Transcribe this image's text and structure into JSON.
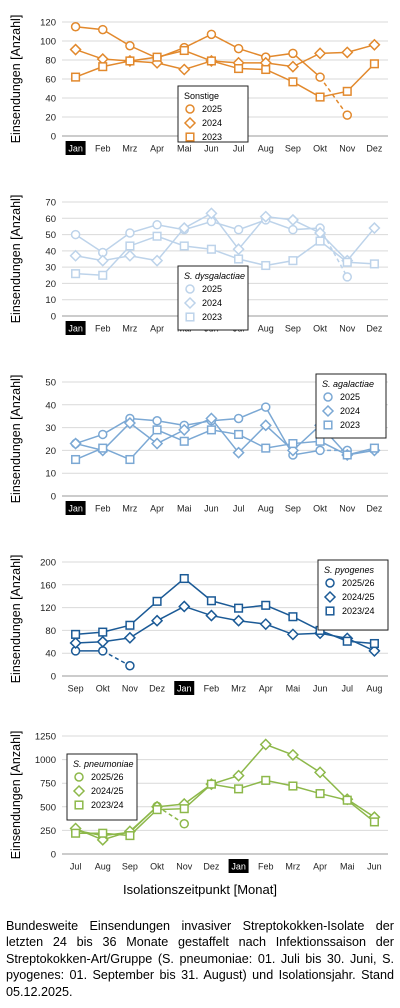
{
  "chart_data": [
    {
      "type": "line",
      "ylabel": "Einsendungen [Anzahl]",
      "categories": [
        "Jan",
        "Feb",
        "Mrz",
        "Apr",
        "Mai",
        "Jun",
        "Jul",
        "Aug",
        "Sep",
        "Okt",
        "Nov",
        "Dez"
      ],
      "highlight": "Jan",
      "ylim": [
        0,
        120
      ],
      "yticks": [
        0,
        20,
        40,
        60,
        80,
        100,
        120
      ],
      "grid": true,
      "legend": {
        "title": "Sonstige",
        "position": "center-right"
      },
      "series": [
        {
          "name": "2025",
          "marker": "circle",
          "color": "#E2892D",
          "values": [
            115,
            112,
            95,
            82,
            93,
            107,
            92,
            83,
            87,
            62,
            null,
            null
          ],
          "dashed": {
            "from": 9,
            "to": 10,
            "value": 22
          }
        },
        {
          "name": "2024",
          "marker": "diamond",
          "color": "#E2892D",
          "values": [
            91,
            81,
            79,
            77,
            70,
            79,
            77,
            77,
            73,
            87,
            88,
            96
          ]
        },
        {
          "name": "2023",
          "marker": "square",
          "color": "#E2892D",
          "values": [
            62,
            73,
            79,
            83,
            90,
            79,
            71,
            70,
            57,
            41,
            47,
            76
          ]
        }
      ]
    },
    {
      "type": "line",
      "ylabel": "Einsendungen [Anzahl]",
      "categories": [
        "Jan",
        "Feb",
        "Mrz",
        "Apr",
        "Mai",
        "Jun",
        "Jul",
        "Aug",
        "Sep",
        "Okt",
        "Nov",
        "Dez"
      ],
      "highlight": "Jan",
      "ylim": [
        0,
        70
      ],
      "yticks": [
        0,
        10,
        20,
        30,
        40,
        50,
        60,
        70
      ],
      "grid": true,
      "legend": {
        "title": "S. dysgalactiae",
        "position": "center"
      },
      "series": [
        {
          "name": "2025",
          "marker": "circle",
          "color": "#BDD3EA",
          "values": [
            50,
            39,
            51,
            56,
            53,
            58,
            53,
            59,
            53,
            54,
            null,
            null
          ],
          "dashed": {
            "from": 9,
            "to": 10,
            "value": 24
          }
        },
        {
          "name": "2024",
          "marker": "diamond",
          "color": "#BDD3EA",
          "values": [
            37,
            34,
            37,
            34,
            54,
            63,
            41,
            61,
            59,
            51,
            34,
            54
          ]
        },
        {
          "name": "2023",
          "marker": "square",
          "color": "#BDD3EA",
          "values": [
            26,
            25,
            43,
            49,
            43,
            41,
            35,
            31,
            34,
            46,
            33,
            32
          ]
        }
      ]
    },
    {
      "type": "line",
      "ylabel": "Einsendungen [Anzahl]",
      "categories": [
        "Jan",
        "Feb",
        "Mrz",
        "Apr",
        "Mai",
        "Jun",
        "Jul",
        "Aug",
        "Sep",
        "Okt",
        "Nov",
        "Dez"
      ],
      "highlight": "Jan",
      "ylim": [
        0,
        50
      ],
      "yticks": [
        0,
        10,
        20,
        30,
        40,
        50
      ],
      "grid": true,
      "legend": {
        "title": "S. agalactiae",
        "position": "top-right"
      },
      "series": [
        {
          "name": "2025",
          "marker": "circle",
          "color": "#7BA8D4",
          "values": [
            23,
            27,
            34,
            33,
            31,
            33,
            34,
            39,
            18,
            20,
            null,
            null
          ],
          "dashed": {
            "from": 9,
            "to": 10,
            "value": 20
          }
        },
        {
          "name": "2024",
          "marker": "diamond",
          "color": "#7BA8D4",
          "values": [
            23,
            20,
            32,
            23,
            29,
            34,
            19,
            31,
            20,
            31,
            18,
            20
          ]
        },
        {
          "name": "2023",
          "marker": "square",
          "color": "#7BA8D4",
          "values": [
            16,
            21,
            16,
            29,
            24,
            29,
            27,
            21,
            23,
            24,
            18,
            21
          ]
        }
      ]
    },
    {
      "type": "line",
      "ylabel": "Einsendungen [Anzahl]",
      "categories": [
        "Sep",
        "Okt",
        "Nov",
        "Dez",
        "Jan",
        "Feb",
        "Mrz",
        "Apr",
        "Mai",
        "Jun",
        "Jul",
        "Aug"
      ],
      "highlight": "Jan",
      "ylim": [
        0,
        200
      ],
      "yticks": [
        0,
        40,
        80,
        120,
        160,
        200
      ],
      "grid": true,
      "legend": {
        "title": "S. pyogenes",
        "position": "top-right"
      },
      "series": [
        {
          "name": "2025/26",
          "marker": "circle",
          "color": "#1B5A96",
          "values": [
            44,
            44,
            null,
            null,
            null,
            null,
            null,
            null,
            null,
            null,
            null,
            null
          ],
          "dashed": {
            "from": 1,
            "to": 2,
            "value": 18
          }
        },
        {
          "name": "2024/25",
          "marker": "diamond",
          "color": "#1B5A96",
          "values": [
            58,
            60,
            67,
            97,
            122,
            106,
            97,
            91,
            73,
            75,
            66,
            44
          ]
        },
        {
          "name": "2023/24",
          "marker": "square",
          "color": "#1B5A96",
          "values": [
            73,
            77,
            89,
            131,
            171,
            132,
            119,
            124,
            104,
            80,
            61,
            57
          ]
        }
      ]
    },
    {
      "type": "line",
      "ylabel": "Einsendungen [Anzahl]",
      "categories": [
        "Jul",
        "Aug",
        "Sep",
        "Okt",
        "Nov",
        "Dez",
        "Jan",
        "Feb",
        "Mrz",
        "Apr",
        "Mai",
        "Jun"
      ],
      "highlight": "Jan",
      "ylim": [
        0,
        1250
      ],
      "yticks": [
        0,
        250,
        500,
        750,
        1000,
        1250
      ],
      "grid": true,
      "legend": {
        "title": "S. pneumoniae",
        "position": "top-left"
      },
      "series": [
        {
          "name": "2025/26",
          "marker": "circle",
          "color": "#8DB84A",
          "values": [
            250,
            195,
            230,
            505,
            null,
            null,
            null,
            null,
            null,
            null,
            null,
            null
          ],
          "dashed": {
            "from": 3,
            "to": 4,
            "value": 320
          }
        },
        {
          "name": "2024/25",
          "marker": "diamond",
          "color": "#8DB84A",
          "values": [
            270,
            150,
            240,
            500,
            530,
            740,
            830,
            1160,
            1050,
            865,
            580,
            390
          ]
        },
        {
          "name": "2023/24",
          "marker": "square",
          "color": "#8DB84A",
          "values": [
            220,
            220,
            195,
            470,
            480,
            740,
            690,
            780,
            720,
            640,
            570,
            340
          ]
        }
      ]
    }
  ],
  "xlabel": "Isolationszeitpunkt [Monat]",
  "caption": "Bundesweite Einsendungen invasiver Streptokokken-Isolate der letzten 24 bis 36 Monate gestaffelt nach Infektionssaison der Streptokokken-Art/Gruppe (S. pneumoniae: 01. Juli bis 30. Juni, S. pyogenes: 01. September bis 31. August) und Isolationsjahr. Stand 05.12.2025."
}
